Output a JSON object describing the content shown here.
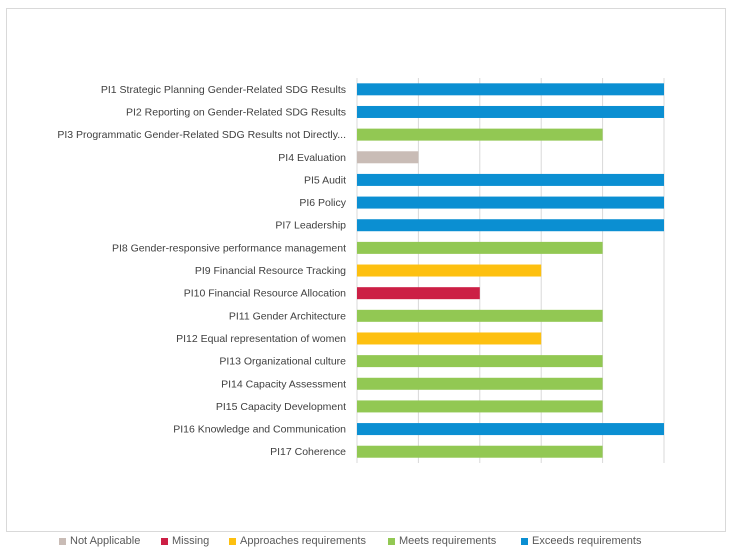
{
  "colors": {
    "not_applicable": "#c9bcb6",
    "missing": "#cc1f45",
    "approaches": "#fdc010",
    "meets": "#92c853",
    "exceeds": "#0b8fd2",
    "grid": "#d9d9d9"
  },
  "chart_data": {
    "type": "bar",
    "orientation": "horizontal",
    "title": "",
    "xlabel": "",
    "ylabel": "",
    "xlim": [
      0,
      5
    ],
    "grid": true,
    "legend_position": "bottom",
    "categories": [
      "PI1 Strategic Planning Gender-Related SDG Results",
      "PI2 Reporting on Gender-Related SDG Results",
      "PI3 Programmatic Gender-Related SDG Results not Directly...",
      "PI4 Evaluation",
      "PI5 Audit",
      "PI6 Policy",
      "PI7 Leadership",
      "PI8 Gender-responsive performance management",
      "PI9 Financial Resource Tracking",
      "PI10 Financial Resource Allocation",
      "PI11 Gender Architecture",
      "PI12 Equal representation of women",
      "PI13 Organizational culture",
      "PI14 Capacity Assessment",
      "PI15 Capacity Development",
      "PI16 Knowledge and Communication",
      "PI17 Coherence"
    ],
    "values": [
      5,
      5,
      4,
      1,
      5,
      5,
      5,
      4,
      3,
      2,
      4,
      3,
      4,
      4,
      4,
      5,
      4
    ],
    "ratings": [
      "exceeds",
      "exceeds",
      "meets",
      "not_applicable",
      "exceeds",
      "exceeds",
      "exceeds",
      "meets",
      "approaches",
      "missing",
      "meets",
      "approaches",
      "meets",
      "meets",
      "meets",
      "exceeds",
      "meets"
    ],
    "legend": [
      {
        "key": "not_applicable",
        "label": "Not Applicable"
      },
      {
        "key": "missing",
        "label": "Missing"
      },
      {
        "key": "approaches",
        "label": "Approaches requirements"
      },
      {
        "key": "meets",
        "label": "Meets requirements"
      },
      {
        "key": "exceeds",
        "label": "Exceeds requirements"
      }
    ]
  }
}
